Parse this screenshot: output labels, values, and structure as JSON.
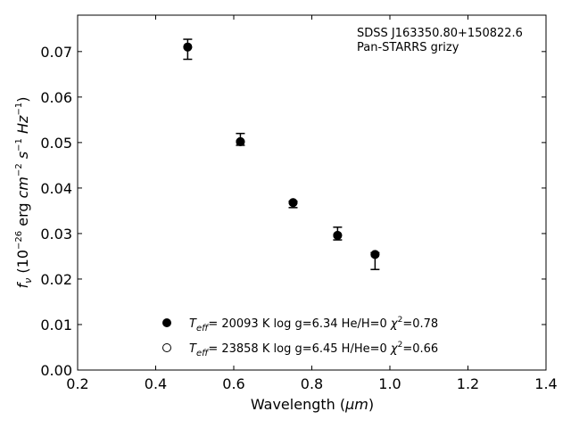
{
  "chart_data": {
    "type": "scatter",
    "xlabel_prefix": "Wavelength (",
    "xlabel_unit": "μm",
    "xlabel_suffix": ")",
    "ylabel": "f_ν (10^-26 erg cm^-2 s^-1 Hz^-1)",
    "xlim": [
      0.2,
      1.4
    ],
    "ylim": [
      0.0,
      0.078
    ],
    "xticks": [
      "0.2",
      "0.4",
      "0.6",
      "0.8",
      "1.0",
      "1.2",
      "1.4"
    ],
    "yticks": [
      "0.00",
      "0.01",
      "0.02",
      "0.03",
      "0.04",
      "0.05",
      "0.06",
      "0.07"
    ],
    "annotation": [
      "SDSS J163350.80+150822.6",
      "Pan-STARRS grizy"
    ],
    "observed": {
      "x": [
        0.482,
        0.617,
        0.752,
        0.866,
        0.962
      ],
      "y": [
        0.0705,
        0.0507,
        0.0364,
        0.0297,
        0.0245
      ],
      "yerr_low": [
        0.0022,
        0.0013,
        0.0007,
        0.0011,
        0.0024
      ],
      "yerr_high": [
        0.0022,
        0.0013,
        0.0007,
        0.0017,
        0.0013
      ]
    },
    "series": [
      {
        "marker": "filled",
        "teff": "20093",
        "logg": "6.34",
        "composition": "He/H=0",
        "chi2": "0.78",
        "x": [
          0.482,
          0.617,
          0.752,
          0.866,
          0.962
        ],
        "y": [
          0.071,
          0.0502,
          0.0368,
          0.0296,
          0.0254
        ]
      },
      {
        "marker": "open",
        "teff": "23858",
        "logg": "6.45",
        "composition": "H/He=0",
        "chi2": "0.66",
        "x": [
          0.482,
          0.617,
          0.752,
          0.866,
          0.962
        ],
        "y": [
          0.071,
          0.0502,
          0.0368,
          0.0296,
          0.0254
        ]
      }
    ],
    "legend_location": "lower-center"
  }
}
